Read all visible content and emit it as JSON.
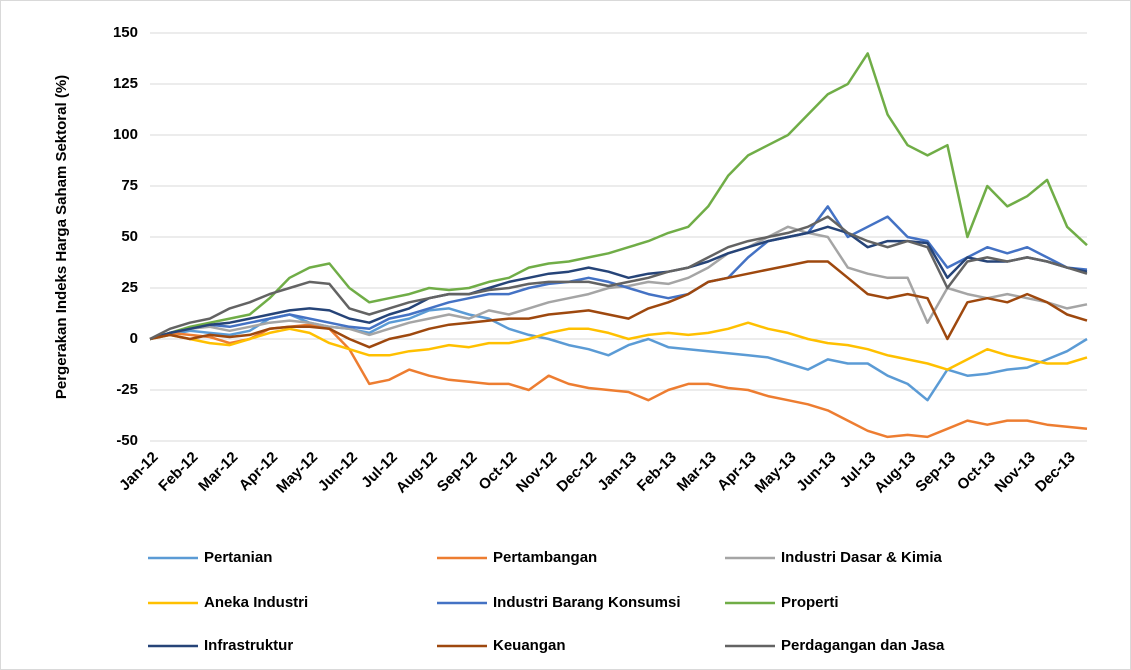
{
  "chart_data": {
    "type": "line",
    "y_label": "Pergerakan Indeks Harga Saham Sektoral (%)",
    "categories": [
      "Jan-12",
      null,
      "Feb-12",
      null,
      "Mar-12",
      null,
      "Apr-12",
      null,
      "May-12",
      null,
      "Jun-12",
      null,
      "Jul-12",
      null,
      "Aug-12",
      null,
      "Sep-12",
      null,
      "Oct-12",
      null,
      "Nov-12",
      null,
      "Dec-12",
      null,
      "Jan-13",
      null,
      "Feb-13",
      null,
      "Mar-13",
      null,
      "Apr-13",
      null,
      "May-13",
      null,
      "Jun-13",
      null,
      "Jul-13",
      null,
      "Aug-13",
      null,
      "Sep-13",
      null,
      "Oct-13",
      null,
      "Nov-13",
      null,
      "Dec-13",
      null
    ],
    "ylim": [
      -50,
      150
    ],
    "yticks": [
      -50,
      -25,
      0,
      25,
      50,
      75,
      100,
      125,
      150
    ],
    "grid": true,
    "series": [
      {
        "name": "Pertanian",
        "color": "#5b9bd5",
        "values": [
          0,
          2,
          4,
          3,
          2,
          4,
          10,
          12,
          8,
          6,
          5,
          3,
          8,
          10,
          14,
          15,
          12,
          10,
          5,
          2,
          0,
          -3,
          -5,
          -8,
          -3,
          0,
          -4,
          -5,
          -6,
          -7,
          -8,
          -9,
          -12,
          -15,
          -10,
          -12,
          -12,
          -18,
          -22,
          -30,
          -15,
          -18,
          -17,
          -15,
          -14,
          -10,
          -6,
          0
        ]
      },
      {
        "name": "Pertambangan",
        "color": "#ed7d31",
        "values": [
          0,
          3,
          2,
          1,
          -2,
          0,
          5,
          6,
          7,
          5,
          -5,
          -22,
          -20,
          -15,
          -18,
          -20,
          -21,
          -22,
          -22,
          -25,
          -18,
          -22,
          -24,
          -25,
          -26,
          -30,
          -25,
          -22,
          -22,
          -24,
          -25,
          -28,
          -30,
          -32,
          -35,
          -40,
          -45,
          -48,
          -47,
          -48,
          -44,
          -40,
          -42,
          -40,
          -40,
          -42,
          -43,
          -44
        ]
      },
      {
        "name": "Industri Dasar & Kimia",
        "color": "#a5a5a5",
        "values": [
          0,
          3,
          5,
          6,
          4,
          6,
          8,
          9,
          8,
          6,
          5,
          2,
          5,
          8,
          10,
          12,
          10,
          14,
          12,
          15,
          18,
          20,
          22,
          25,
          26,
          28,
          27,
          30,
          35,
          42,
          45,
          50,
          55,
          52,
          50,
          35,
          32,
          30,
          30,
          8,
          25,
          22,
          20,
          22,
          20,
          18,
          15,
          17
        ]
      },
      {
        "name": "Aneka Industri",
        "color": "#ffc000",
        "values": [
          0,
          2,
          0,
          -2,
          -3,
          0,
          3,
          5,
          3,
          -2,
          -5,
          -8,
          -8,
          -6,
          -5,
          -3,
          -4,
          -2,
          -2,
          0,
          3,
          5,
          5,
          3,
          0,
          2,
          3,
          2,
          3,
          5,
          8,
          5,
          3,
          0,
          -2,
          -3,
          -5,
          -8,
          -10,
          -12,
          -15,
          -10,
          -5,
          -8,
          -10,
          -12,
          -12,
          -9
        ]
      },
      {
        "name": "Industri Barang Konsumsi",
        "color": "#4472c4",
        "values": [
          0,
          3,
          5,
          7,
          6,
          8,
          10,
          12,
          10,
          8,
          6,
          5,
          10,
          12,
          15,
          18,
          20,
          22,
          22,
          25,
          27,
          28,
          30,
          28,
          25,
          22,
          20,
          22,
          28,
          30,
          40,
          48,
          50,
          52,
          65,
          50,
          55,
          60,
          50,
          48,
          35,
          40,
          45,
          42,
          45,
          40,
          35,
          34
        ]
      },
      {
        "name": "Properti",
        "color": "#70ad47",
        "values": [
          0,
          3,
          6,
          8,
          10,
          12,
          20,
          30,
          35,
          37,
          25,
          18,
          20,
          22,
          25,
          24,
          25,
          28,
          30,
          35,
          37,
          38,
          40,
          42,
          45,
          48,
          52,
          55,
          65,
          80,
          90,
          95,
          100,
          110,
          120,
          125,
          140,
          110,
          95,
          90,
          95,
          50,
          75,
          65,
          70,
          78,
          55,
          46
        ]
      },
      {
        "name": "Infrastruktur",
        "color": "#264478",
        "values": [
          0,
          3,
          5,
          7,
          8,
          10,
          12,
          14,
          15,
          14,
          10,
          8,
          12,
          15,
          20,
          22,
          22,
          25,
          28,
          30,
          32,
          33,
          35,
          33,
          30,
          32,
          33,
          35,
          38,
          42,
          45,
          48,
          50,
          52,
          55,
          52,
          45,
          48,
          48,
          47,
          30,
          40,
          38,
          38,
          40,
          38,
          35,
          33
        ]
      },
      {
        "name": "Keuangan",
        "color": "#9e480e",
        "values": [
          0,
          2,
          0,
          2,
          1,
          2,
          5,
          6,
          6,
          5,
          0,
          -4,
          0,
          2,
          5,
          7,
          8,
          9,
          10,
          10,
          12,
          13,
          14,
          12,
          10,
          15,
          18,
          22,
          28,
          30,
          32,
          34,
          36,
          38,
          38,
          30,
          22,
          20,
          22,
          20,
          0,
          18,
          20,
          18,
          22,
          18,
          12,
          9
        ]
      },
      {
        "name": "Perdagangan dan Jasa",
        "color": "#636363",
        "values": [
          0,
          5,
          8,
          10,
          15,
          18,
          22,
          25,
          28,
          27,
          15,
          12,
          15,
          18,
          20,
          22,
          22,
          24,
          25,
          27,
          28,
          28,
          28,
          26,
          28,
          30,
          33,
          35,
          40,
          45,
          48,
          50,
          52,
          55,
          60,
          52,
          48,
          45,
          48,
          45,
          25,
          38,
          40,
          38,
          40,
          38,
          35,
          32
        ]
      }
    ]
  }
}
